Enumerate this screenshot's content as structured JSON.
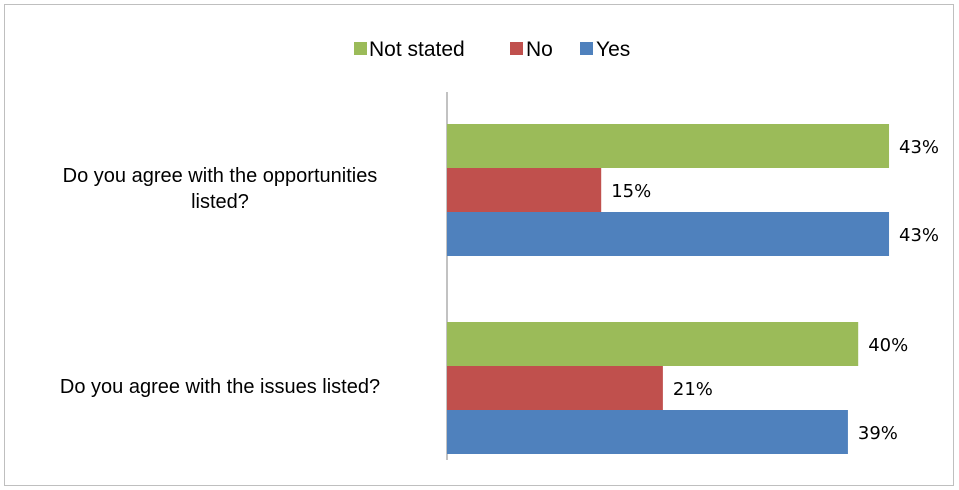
{
  "chart_data": {
    "type": "bar",
    "orientation": "horizontal",
    "categories": [
      "Do you agree with the opportunities listed?",
      "Do you agree with the issues listed?"
    ],
    "category_lines": [
      [
        "Do you agree with the opportunities",
        "listed?"
      ],
      [
        "Do you agree with the issues listed?"
      ]
    ],
    "series": [
      {
        "name": "Not stated",
        "color": "#9bbb59",
        "values": [
          43,
          40
        ],
        "labels": [
          "43%",
          "40%"
        ]
      },
      {
        "name": "No",
        "color": "#c0504d",
        "values": [
          15,
          21
        ],
        "labels": [
          "15%",
          "21%"
        ]
      },
      {
        "name": "Yes",
        "color": "#4f81bd",
        "values": [
          43,
          39
        ],
        "labels": [
          "43%",
          "39%"
        ]
      }
    ],
    "unit": "%",
    "xlim": [
      0,
      50
    ],
    "legend_position": "top",
    "grid": false
  }
}
